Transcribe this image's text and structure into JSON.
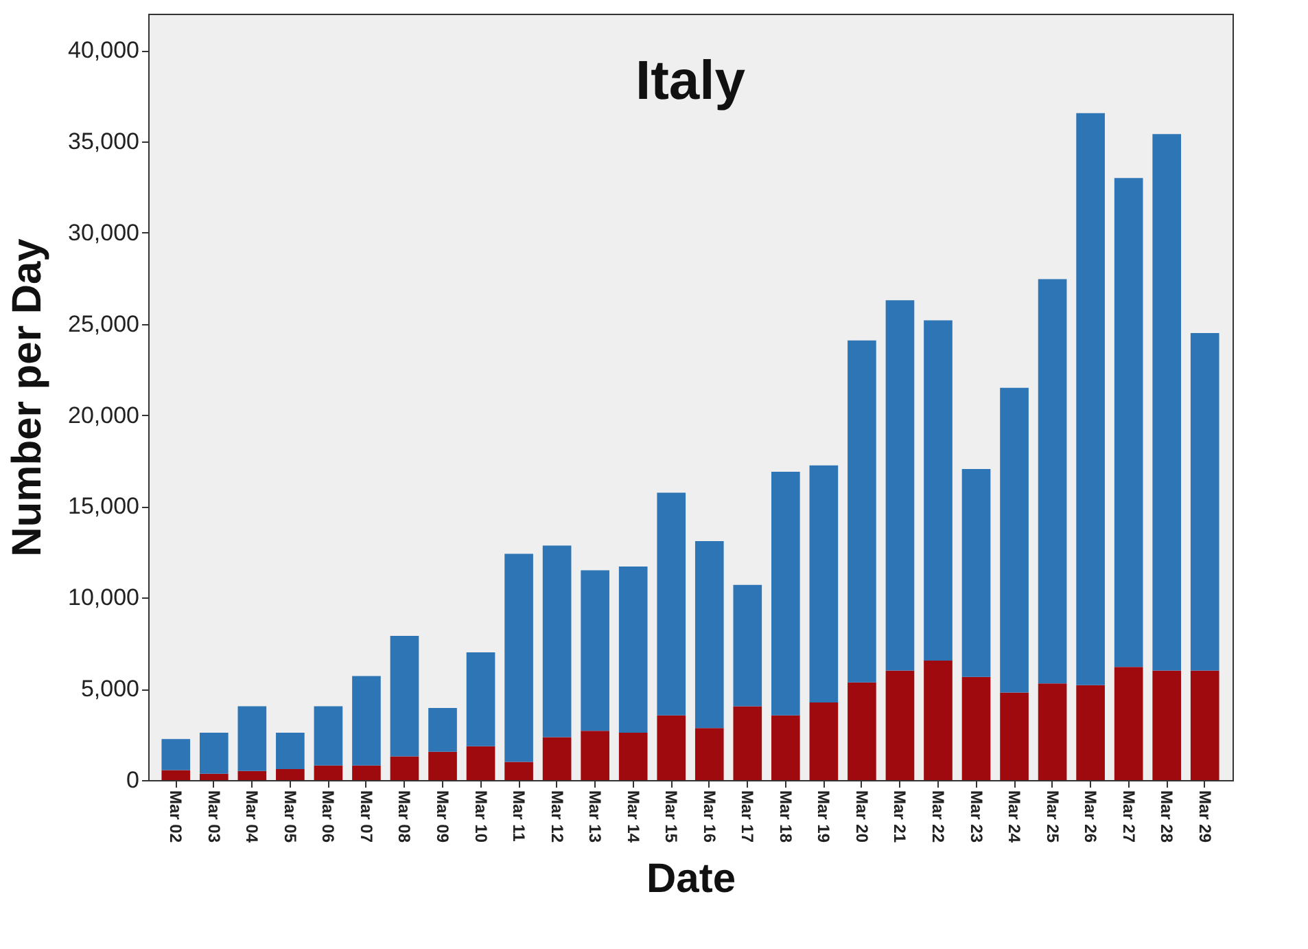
{
  "chart_data": {
    "type": "bar",
    "title": "Italy",
    "xlabel": "Date",
    "ylabel": "Number per Day",
    "stacked": true,
    "categories": [
      "Mar 02",
      "Mar 03",
      "Mar 04",
      "Mar 05",
      "Mar 06",
      "Mar 07",
      "Mar 08",
      "Mar 09",
      "Mar 10",
      "Mar 11",
      "Mar 12",
      "Mar 13",
      "Mar 14",
      "Mar 15",
      "Mar 16",
      "Mar 17",
      "Mar 18",
      "Mar 19",
      "Mar 20",
      "Mar 21",
      "Mar 22",
      "Mar 23",
      "Mar 24",
      "Mar 25",
      "Mar 26",
      "Mar 27",
      "Mar 28",
      "Mar 29"
    ],
    "series": [
      {
        "color": "#9e0a0e",
        "values": [
          550,
          350,
          500,
          600,
          800,
          800,
          1300,
          1550,
          1850,
          1000,
          2350,
          2700,
          2600,
          3550,
          2850,
          4050,
          3550,
          4250,
          5350,
          6000,
          6550,
          5650,
          4800,
          5300,
          5200,
          6200,
          6000,
          6000
        ]
      },
      {
        "color": "#2e75b6",
        "values": [
          1700,
          2250,
          3550,
          2000,
          3250,
          4900,
          6600,
          2400,
          5150,
          11400,
          10500,
          8800,
          9100,
          12200,
          10250,
          6650,
          13350,
          13000,
          18750,
          20300,
          18650,
          11400,
          16700,
          22150,
          31350,
          26800,
          29400,
          18500
        ]
      }
    ],
    "ylim": [
      0,
      42000
    ],
    "yticks": [
      0,
      {
        "value": 5000,
        "label": "5,000"
      },
      {
        "value": 10000,
        "label": "10,000"
      },
      {
        "value": 15000,
        "label": "15,000"
      },
      {
        "value": 20000,
        "label": "20,000"
      },
      {
        "value": 25000,
        "label": "25,000"
      },
      {
        "value": 30000,
        "label": "30,000"
      },
      {
        "value": 35000,
        "label": "35,000"
      },
      {
        "value": 40000,
        "label": "40,000"
      }
    ],
    "grid": false,
    "legend": false
  }
}
